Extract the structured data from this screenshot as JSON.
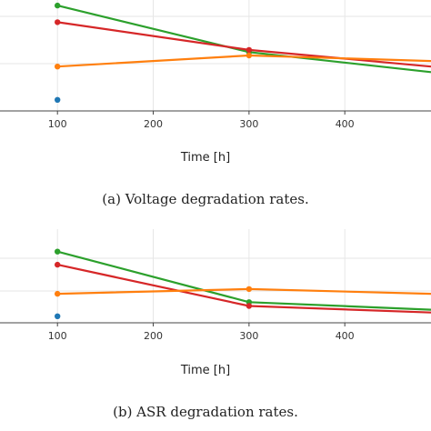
{
  "chart_data": [
    {
      "type": "line",
      "caption": "(a) Voltage degradation rates.",
      "xlabel": "Time [h]",
      "ylabel": "",
      "x_ticks": [
        100,
        200,
        300,
        400
      ],
      "xlim": [
        40,
        490
      ],
      "ylim": [
        0.0,
        1.0
      ],
      "grid": true,
      "series": [
        {
          "color": "#2ca02c",
          "x": [
            100,
            300,
            490
          ],
          "y": [
            0.95,
            0.53,
            0.35
          ]
        },
        {
          "color": "#d62728",
          "x": [
            100,
            300,
            490
          ],
          "y": [
            0.8,
            0.55,
            0.4
          ]
        },
        {
          "color": "#ff7f0e",
          "x": [
            100,
            300,
            490
          ],
          "y": [
            0.4,
            0.5,
            0.45
          ]
        },
        {
          "color": "#1f77b4",
          "x": [
            100
          ],
          "y": [
            0.1
          ]
        }
      ]
    },
    {
      "type": "line",
      "caption": "(b) ASR degradation rates.",
      "xlabel": "Time [h]",
      "ylabel": "",
      "x_ticks": [
        100,
        200,
        300,
        400
      ],
      "xlim": [
        40,
        490
      ],
      "ylim": [
        0.0,
        1.0
      ],
      "grid": true,
      "series": [
        {
          "color": "#2ca02c",
          "x": [
            100,
            300,
            490
          ],
          "y": [
            0.76,
            0.22,
            0.14
          ]
        },
        {
          "color": "#d62728",
          "x": [
            100,
            300,
            490
          ],
          "y": [
            0.62,
            0.18,
            0.11
          ]
        },
        {
          "color": "#ff7f0e",
          "x": [
            100,
            300,
            490
          ],
          "y": [
            0.31,
            0.36,
            0.31
          ]
        },
        {
          "color": "#1f77b4",
          "x": [
            100
          ],
          "y": [
            0.07
          ]
        }
      ]
    }
  ]
}
